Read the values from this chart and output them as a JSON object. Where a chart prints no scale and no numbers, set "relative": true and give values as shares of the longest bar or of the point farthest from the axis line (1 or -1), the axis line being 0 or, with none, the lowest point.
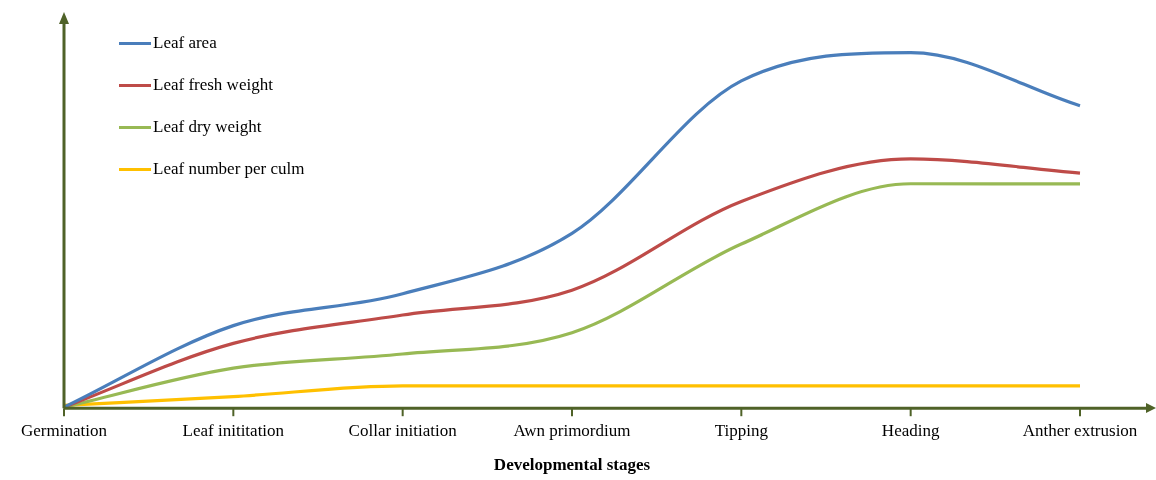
{
  "chart_data": {
    "type": "line",
    "relative": true,
    "xlabel": "Developmental stages",
    "categories": [
      "Germination",
      "Leaf inititation",
      "Collar initiation",
      "Awn primordium",
      "Tipping",
      "Heading",
      "Anther extrusion"
    ],
    "series": [
      {
        "name": "Leaf area",
        "color": "#4a7ebb",
        "values": [
          0,
          0.23,
          0.32,
          0.49,
          0.92,
          1,
          0.85
        ]
      },
      {
        "name": "Leaf fresh weight",
        "color": "#be4b48",
        "values": [
          0,
          0.18,
          0.26,
          0.33,
          0.58,
          0.7,
          0.66
        ]
      },
      {
        "name": "Leaf dry weight",
        "color": "#98b954",
        "values": [
          0,
          0.11,
          0.15,
          0.21,
          0.46,
          0.63,
          0.63
        ]
      },
      {
        "name": "Leaf number per culm",
        "color": "#ffc000",
        "values": [
          0.005,
          0.03,
          0.06,
          0.06,
          0.06,
          0.06,
          0.06
        ]
      }
    ],
    "legend": "top left",
    "marker": "none",
    "line_style": "solid",
    "grid": false
  }
}
